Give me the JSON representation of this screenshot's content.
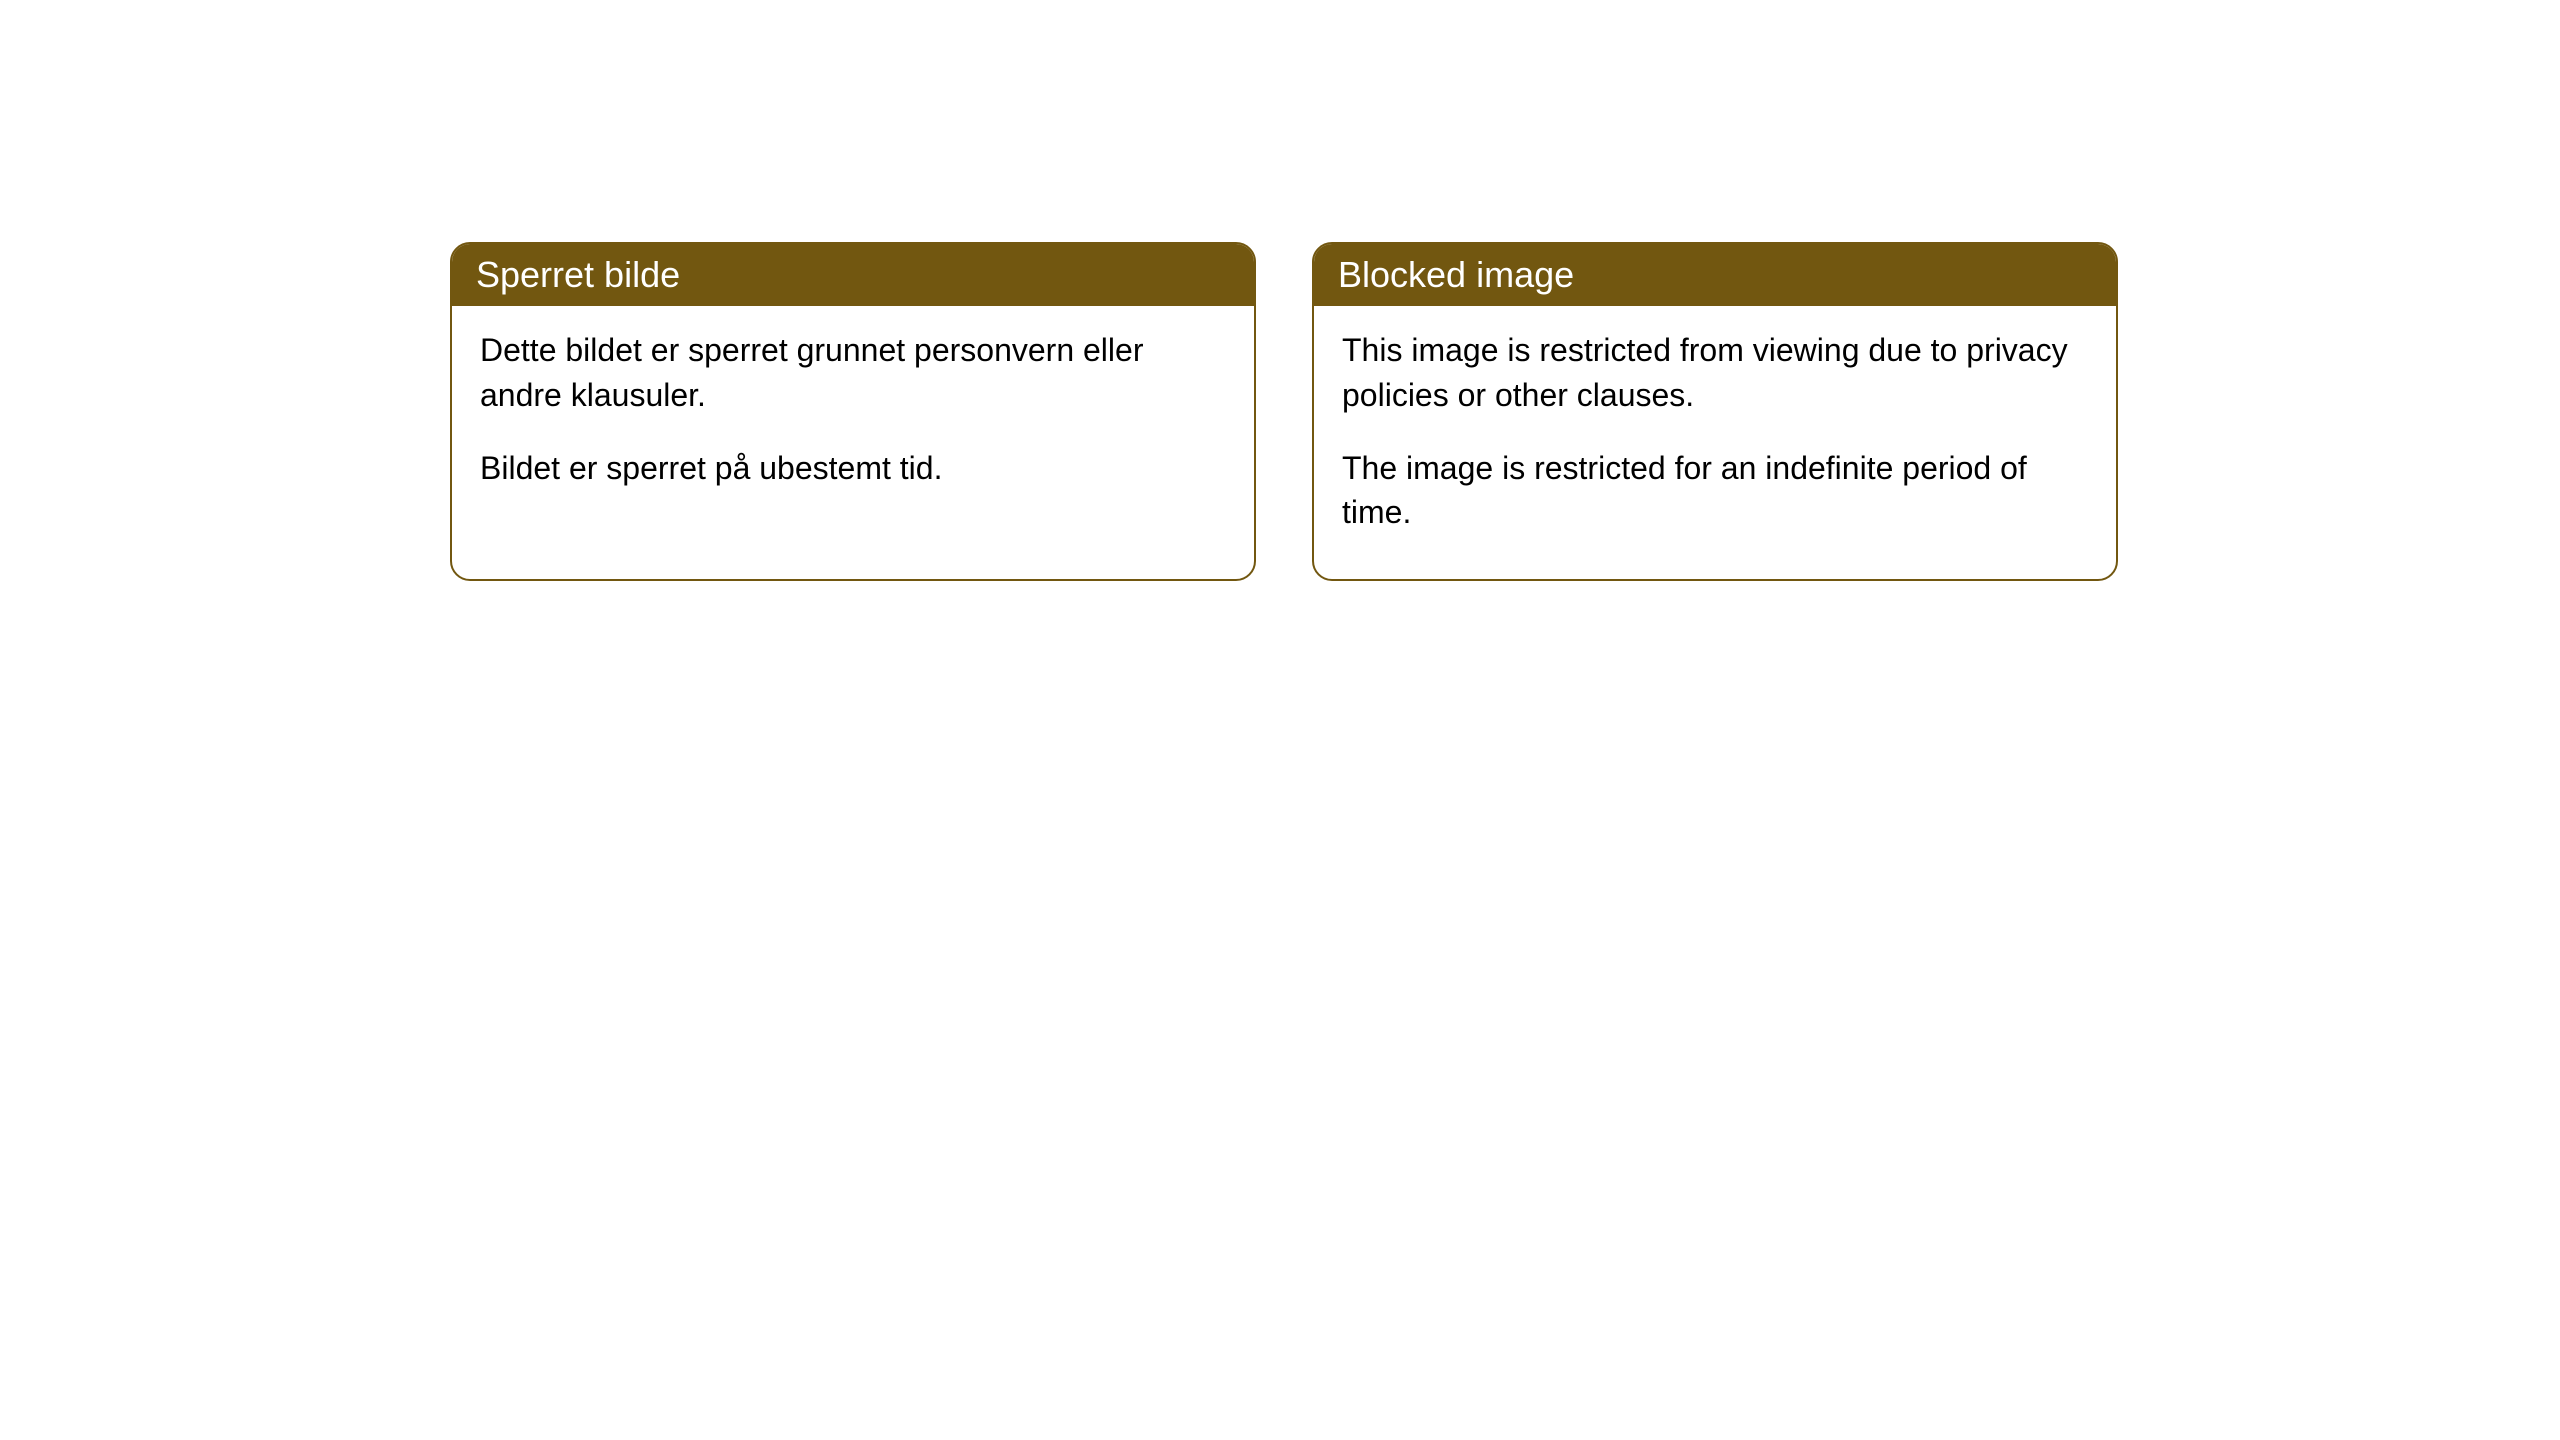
{
  "cards": [
    {
      "title": "Sperret bilde",
      "paragraph1": "Dette bildet er sperret grunnet personvern eller andre klausuler.",
      "paragraph2": "Bildet er sperret på ubestemt tid."
    },
    {
      "title": "Blocked image",
      "paragraph1": "This image is restricted from viewing due to privacy policies or other clauses.",
      "paragraph2": "The image is restricted for an indefinite period of time."
    }
  ],
  "styling": {
    "header_background": "#725710",
    "header_text_color": "#ffffff",
    "border_color": "#725710",
    "body_background": "#ffffff",
    "body_text_color": "#000000",
    "border_radius": 20,
    "header_font_size": 36,
    "body_font_size": 32
  }
}
